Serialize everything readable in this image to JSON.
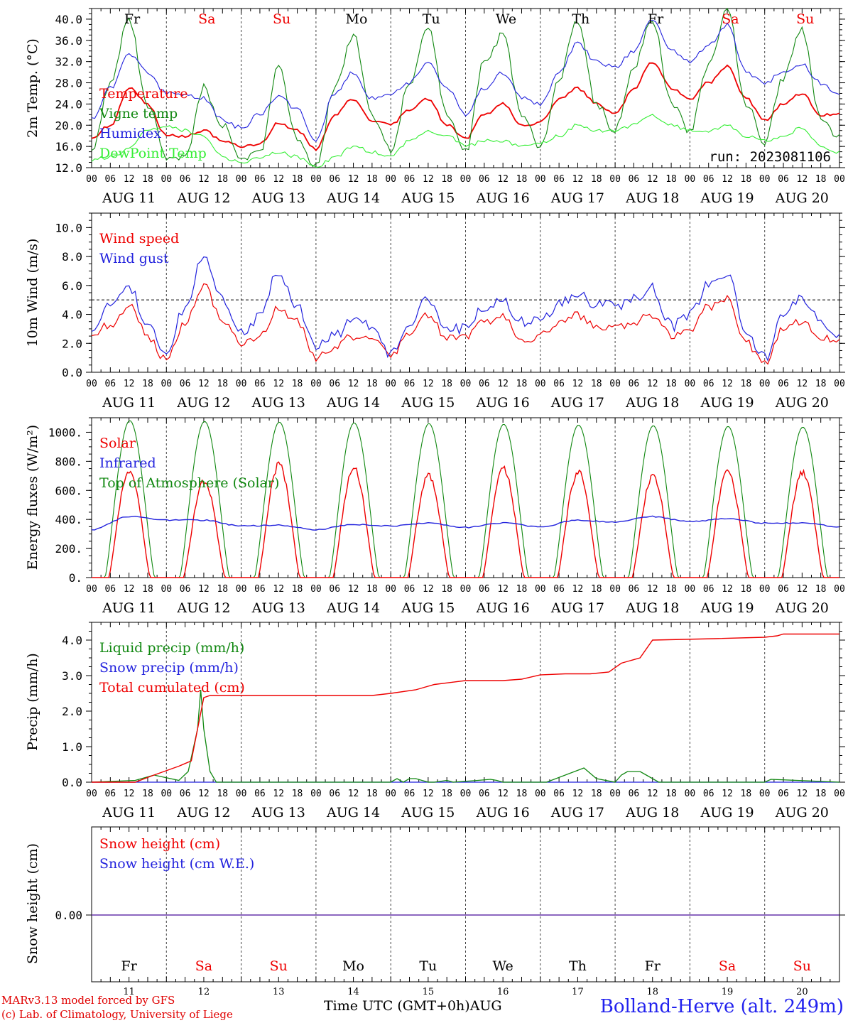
{
  "chart_data": [
    {
      "type": "line",
      "id": "temperature",
      "ylabel": "2m Temp. (°C)",
      "ylim": [
        12,
        42
      ],
      "yticks": [
        12.0,
        16.0,
        20.0,
        24.0,
        28.0,
        32.0,
        36.0,
        40.0
      ],
      "run_label": "run: 2023081106",
      "x_hours": [
        0,
        6,
        12,
        18,
        24,
        30,
        36,
        42,
        48,
        54,
        60,
        66,
        72,
        78,
        84,
        90,
        96,
        102,
        108,
        114,
        120,
        126,
        132,
        138,
        144,
        150,
        156,
        162,
        168,
        174,
        180,
        186,
        192,
        198,
        204,
        210,
        216,
        222,
        228,
        234,
        240
      ],
      "series": [
        {
          "name": "Temperature",
          "color": "#ee0000",
          "values": [
            17.5,
            20,
            27,
            24,
            18,
            18,
            19,
            17,
            16,
            16.5,
            20.5,
            19,
            15.5,
            22,
            25,
            21,
            20,
            23,
            25,
            20,
            17.5,
            22,
            24,
            20,
            20.5,
            25,
            27,
            24,
            22,
            27,
            32,
            27,
            25,
            28,
            31,
            25,
            21,
            24,
            26,
            22,
            22
          ]
        },
        {
          "name": "Vigne temp",
          "color": "#118811",
          "values": [
            14.5,
            28,
            40,
            24,
            14,
            14,
            27,
            20,
            13,
            15,
            31,
            17,
            12.5,
            27,
            37,
            22,
            15,
            28,
            38,
            22,
            15,
            32,
            37,
            22,
            16,
            29,
            40,
            24,
            19,
            31,
            40,
            24,
            19,
            31,
            42,
            24,
            17,
            29,
            38,
            21,
            18
          ]
        },
        {
          "name": "Humidex",
          "color": "#2222dd",
          "values": [
            21,
            27,
            33.5,
            30,
            26,
            26,
            25,
            21,
            19.5,
            22,
            25.5,
            23,
            17,
            26,
            30,
            25,
            26,
            28,
            31.5,
            27,
            22,
            27,
            30,
            25,
            24,
            30,
            35.5,
            32,
            31,
            34,
            40,
            34,
            32,
            35,
            39,
            30,
            28,
            30,
            31.5,
            28,
            26
          ]
        },
        {
          "name": "DewPoint Temp",
          "color": "#33ee33",
          "values": [
            13.5,
            14,
            15.5,
            19,
            20,
            19,
            18,
            14,
            13,
            14,
            15,
            14,
            12,
            14,
            16,
            15,
            14,
            17,
            19,
            18,
            16,
            17,
            17,
            16,
            16.5,
            18,
            20,
            19,
            19,
            20,
            22,
            20,
            19,
            19,
            20,
            18,
            17,
            18,
            19.5,
            16,
            15
          ]
        }
      ],
      "weekday_labels": [
        {
          "text": "Fr",
          "color": "#000000"
        },
        {
          "text": "Sa",
          "color": "#ee0000"
        },
        {
          "text": "Su",
          "color": "#ee0000"
        },
        {
          "text": "Mo",
          "color": "#000000"
        },
        {
          "text": "Tu",
          "color": "#000000"
        },
        {
          "text": "We",
          "color": "#000000"
        },
        {
          "text": "Th",
          "color": "#000000"
        },
        {
          "text": "Fr",
          "color": "#000000"
        },
        {
          "text": "Sa",
          "color": "#ee0000"
        },
        {
          "text": "Su",
          "color": "#ee0000"
        }
      ]
    },
    {
      "type": "line",
      "id": "wind",
      "ylabel": "10m Wind (m/s)",
      "ylim": [
        0,
        11
      ],
      "yticks": [
        0.0,
        2.0,
        4.0,
        6.0,
        8.0,
        10.0
      ],
      "reference_line": 5.0,
      "x_hours": [
        0,
        6,
        12,
        18,
        24,
        30,
        36,
        42,
        48,
        54,
        60,
        66,
        72,
        78,
        84,
        90,
        96,
        102,
        108,
        114,
        120,
        126,
        132,
        138,
        144,
        150,
        156,
        162,
        168,
        174,
        180,
        186,
        192,
        198,
        204,
        210,
        216,
        222,
        228,
        234,
        240
      ],
      "series": [
        {
          "name": "Wind speed",
          "color": "#ee0000",
          "values": [
            2.5,
            3.3,
            4.6,
            2.5,
            0.8,
            3.5,
            6.0,
            3.5,
            2.0,
            2.5,
            4.5,
            3.5,
            1.0,
            1.8,
            2.5,
            2.6,
            1.0,
            2.8,
            4.0,
            2.3,
            2.5,
            3.5,
            3.8,
            2.2,
            2.5,
            3.5,
            4.0,
            3.0,
            3.0,
            3.5,
            4.0,
            2.5,
            3.0,
            4.5,
            5.0,
            2.0,
            0.7,
            3.0,
            3.5,
            2.5,
            2.0
          ]
        },
        {
          "name": "Wind gust",
          "color": "#2222dd",
          "values": [
            3.2,
            4.5,
            6.0,
            3.0,
            1.3,
            4.5,
            8.0,
            5.0,
            2.8,
            3.8,
            7.0,
            4.5,
            1.6,
            2.6,
            3.5,
            3.2,
            1.2,
            3.5,
            5.0,
            3.0,
            3.0,
            4.5,
            5.0,
            3.5,
            3.5,
            4.8,
            5.3,
            4.8,
            4.5,
            5.0,
            5.8,
            3.2,
            4.0,
            6.0,
            7.0,
            2.5,
            1.0,
            4.0,
            5.2,
            3.5,
            2.3
          ]
        }
      ]
    },
    {
      "type": "line",
      "id": "energy",
      "ylabel": "Energy fluxes (W/m²)",
      "ylim": [
        0,
        1100
      ],
      "yticks": [
        0,
        200,
        400,
        600,
        800,
        1000
      ],
      "ytick_labels": [
        "0.",
        "200.",
        "400.",
        "600.",
        "800.",
        "1000."
      ],
      "series": [
        {
          "name": "Solar",
          "color": "#ee0000",
          "daily_peaks": [
            760,
            680,
            800,
            780,
            720,
            770,
            750,
            720,
            750,
            750
          ]
        },
        {
          "name": "Infrared",
          "color": "#2222dd",
          "x_hours": [
            0,
            12,
            24,
            36,
            48,
            60,
            72,
            84,
            96,
            108,
            120,
            132,
            144,
            156,
            168,
            180,
            192,
            204,
            216,
            228,
            240
          ],
          "values": [
            330,
            420,
            395,
            395,
            355,
            360,
            330,
            365,
            355,
            375,
            345,
            375,
            350,
            395,
            380,
            420,
            385,
            405,
            375,
            375,
            350
          ]
        },
        {
          "name": "Top of Atmosphere (Solar)",
          "color": "#118811",
          "daily_peaks": [
            1080,
            1075,
            1070,
            1065,
            1060,
            1055,
            1050,
            1045,
            1040,
            1035
          ]
        }
      ]
    },
    {
      "type": "line",
      "id": "precip",
      "ylabel": "Precip (mm/h)",
      "ylim": [
        0,
        4.5
      ],
      "yticks": [
        0.0,
        1.0,
        2.0,
        3.0,
        4.0
      ],
      "series": [
        {
          "name": "Liquid precip (mm/h)",
          "color": "#118811",
          "x_hours": [
            0,
            14,
            20,
            28,
            31,
            34,
            35,
            36,
            38,
            40,
            96,
            98,
            100,
            102,
            104,
            108,
            110,
            114,
            116,
            124,
            128,
            130,
            132,
            140,
            146,
            158,
            162,
            168,
            170,
            172,
            174,
            176,
            178,
            182,
            184,
            190,
            216,
            218,
            240
          ],
          "values": [
            0,
            0.05,
            0.2,
            0.05,
            0.3,
            1.5,
            2.6,
            1.5,
            0.3,
            0,
            0,
            0.1,
            0,
            0.1,
            0.1,
            0,
            0,
            0.05,
            0,
            0.05,
            0.08,
            0.05,
            0,
            0,
            0,
            0.4,
            0.1,
            0,
            0.2,
            0.3,
            0.3,
            0.3,
            0.2,
            0,
            0,
            0,
            0,
            0.08,
            0
          ]
        },
        {
          "name": "Snow precip (mm/h)",
          "color": "#2222dd",
          "x_hours": [
            0,
            240
          ],
          "values": [
            0,
            0
          ]
        },
        {
          "name": "Total cumulated (cm)",
          "color": "#ee0000",
          "x_hours": [
            0,
            14,
            20,
            28,
            32,
            34,
            36,
            38,
            48,
            72,
            90,
            96,
            104,
            110,
            120,
            132,
            138,
            144,
            152,
            160,
            166,
            170,
            172,
            176,
            180,
            200,
            216,
            220,
            222,
            240
          ],
          "values": [
            0,
            0,
            0.2,
            0.45,
            0.6,
            1.5,
            2.38,
            2.44,
            2.44,
            2.44,
            2.44,
            2.5,
            2.6,
            2.75,
            2.86,
            2.86,
            2.9,
            3.02,
            3.05,
            3.05,
            3.1,
            3.35,
            3.4,
            3.5,
            4.0,
            4.04,
            4.08,
            4.12,
            4.17,
            4.17
          ]
        }
      ]
    },
    {
      "type": "line",
      "id": "snow",
      "ylabel": "Snow height (cm)",
      "yticks": [
        0.0
      ],
      "ytick_labels": [
        "0.00"
      ],
      "series": [
        {
          "name": "Snow height (cm)",
          "color": "#ee0000",
          "values": [
            0,
            0
          ]
        },
        {
          "name": "Snow height (cm W.E.)",
          "color": "#2222dd",
          "values": [
            0,
            0
          ]
        }
      ],
      "day_numbers": [
        "11",
        "12",
        "13",
        "14",
        "15",
        "16",
        "17",
        "18",
        "19",
        "20"
      ]
    }
  ],
  "x_axis": {
    "hour_labels": [
      "00",
      "06",
      "12",
      "18"
    ],
    "end_label": "00",
    "dates": [
      "AUG 11",
      "AUG 12",
      "AUG 13",
      "AUG 14",
      "AUG 15",
      "AUG 16",
      "AUG 17",
      "AUG 18",
      "AUG 19",
      "AUG 20"
    ],
    "title": "Time UTC (GMT+0h)",
    "month": "AUG"
  },
  "footer": {
    "model_credit": "MARv3.13 model forced by GFS",
    "lab_credit": "(c) Lab. of Climatology, University of Liege",
    "station": "Bolland-Herve (alt. 249m)"
  },
  "colors": {
    "red": "#ee0000",
    "green": "#118811",
    "blue": "#2222dd",
    "light_green": "#33ee33",
    "snow_line": "#6633aa"
  }
}
